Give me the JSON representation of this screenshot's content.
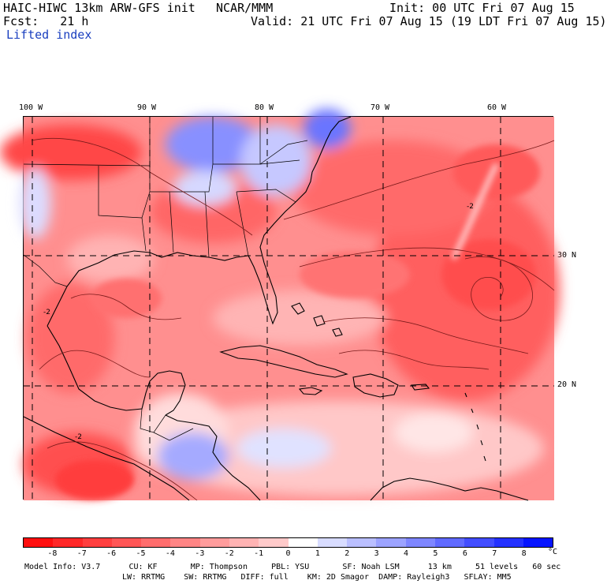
{
  "header": {
    "model_title": "HAIC-HIWC 13km ARW-GFS init",
    "org": "NCAR/MMM",
    "init": "Init: 00 UTC Fri 07 Aug 15",
    "fcst": "Fcst:   21 h",
    "valid": "Valid: 21 UTC Fri 07 Aug 15 (19 LDT Fri 07 Aug 15)",
    "field": "Lifted index"
  },
  "map": {
    "lon_labels": [
      "100 W",
      "90 W",
      "80 W",
      "70 W",
      "60 W"
    ],
    "lat_labels": [
      "30 N",
      "20 N"
    ],
    "contour_labels": [
      "-2",
      "-2",
      "-2"
    ],
    "colors": {
      "frame": "#000000",
      "grid": "#000000",
      "coast": "#000000",
      "contour": "#7a1a1a"
    }
  },
  "colorbar": {
    "unit": "°C",
    "tick_labels": [
      "-8",
      "-7",
      "-6",
      "-5",
      "-4",
      "-3",
      "-2",
      "-1",
      "0",
      "1",
      "2",
      "3",
      "4",
      "5",
      "6",
      "7",
      "8"
    ],
    "colors": [
      "#ff0f0f",
      "#ff2828",
      "#ff3f3f",
      "#ff5656",
      "#ff6d6d",
      "#ff8585",
      "#ff9c9c",
      "#ffb3b3",
      "#ffcaca",
      "#ffffff",
      "#d8dcff",
      "#babfff",
      "#9ca3ff",
      "#7e86ff",
      "#606aff",
      "#424dff",
      "#2431ff",
      "#0614ff"
    ]
  },
  "model_info": {
    "line1": "Model Info: V3.7      CU: KF       MP: Thompson     PBL: YSU       SF: Noah LSM      13 km     51 levels   60 sec",
    "line2": "LW: RRTMG    SW: RRTMG   DIFF: full    KM: 2D Smagor  DAMP: Rayleigh3   SFLAY: MM5"
  }
}
